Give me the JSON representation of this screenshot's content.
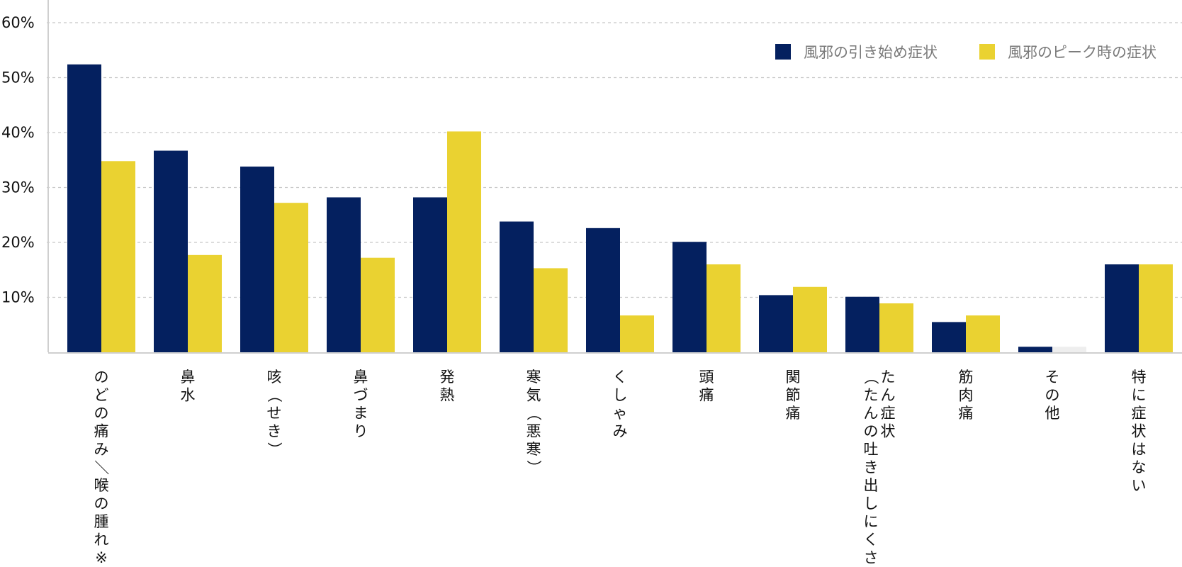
{
  "chart_data": {
    "type": "bar",
    "categories": [
      "のどの痛み／喉の腫れ※",
      "鼻水",
      "咳（せき）",
      "鼻づまり",
      "発熱",
      "寒気（悪寒）",
      "くしゃみ",
      "頭痛",
      "関節痛",
      "たん症状（たんの吐き出しにくさ）",
      "筋肉痛",
      "その他",
      "特に症状はない"
    ],
    "series": [
      {
        "name": "風邪の引き始め症状",
        "color": "#04205f",
        "values": [
          52.4,
          36.7,
          33.8,
          28.2,
          28.2,
          23.8,
          22.6,
          20.1,
          10.4,
          10.1,
          5.5,
          1.0,
          16.0
        ]
      },
      {
        "name": "風邪のピーク時の症状",
        "color": "#ead231",
        "values": [
          34.8,
          17.7,
          27.2,
          17.2,
          40.2,
          15.3,
          6.7,
          16.0,
          11.9,
          8.9,
          6.7,
          1.0,
          16.0
        ]
      }
    ],
    "yticks": [
      "10%",
      "20%",
      "30%",
      "40%",
      "50%",
      "60%"
    ],
    "ytick_values": [
      10,
      20,
      30,
      40,
      50,
      60
    ],
    "ylim": [
      0,
      64
    ],
    "grid": true,
    "legend_position": "top-right",
    "title": "",
    "xlabel": "",
    "ylabel": ""
  }
}
